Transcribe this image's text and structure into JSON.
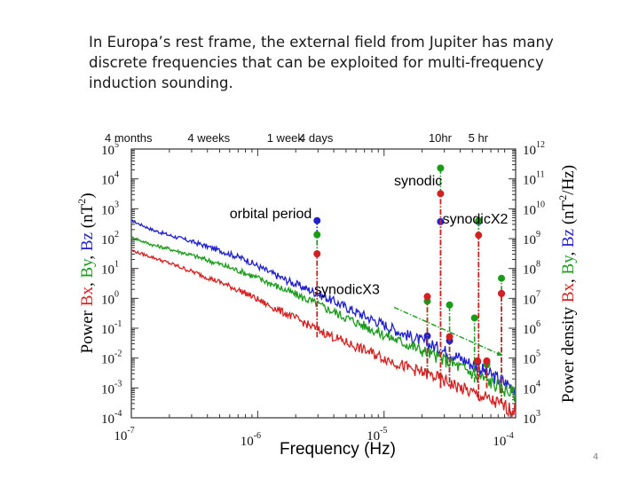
{
  "slide": {
    "text": "In Europa’s rest frame, the external field from Jupiter has many discrete frequencies that can be exploited for multi-frequency induction sounding.",
    "page_number": "4"
  },
  "chart_data": {
    "type": "line",
    "x_scale": "log",
    "y_scale": "log",
    "xlim": [
      1e-07,
      0.00011
    ],
    "ylim_left": [
      0.0001,
      100000.0
    ],
    "ylim_right": [
      1000.0,
      1000000000000.0
    ],
    "xlabel": "Frequency (Hz)",
    "ylabel_left": {
      "prefix": "Power",
      "parts": [
        [
          "Bx",
          "#d42020"
        ],
        [
          ", ",
          "#000000"
        ],
        [
          "By",
          "#1a9b1a"
        ],
        [
          ", ",
          "#000000"
        ],
        [
          "Bz",
          "#2020cc"
        ],
        [
          "  (nT",
          "#000000"
        ],
        [
          "2",
          "#000000"
        ],
        [
          ")",
          "#000000"
        ]
      ]
    },
    "ylabel_right": {
      "prefix": "Power density",
      "parts": [
        [
          "Bx",
          "#d42020"
        ],
        [
          ", ",
          "#000000"
        ],
        [
          "By",
          "#1a9b1a"
        ],
        [
          ", ",
          "#000000"
        ],
        [
          "Bz",
          "#2020cc"
        ],
        [
          "  (nT",
          "#000000"
        ],
        [
          "2",
          "#000000"
        ],
        [
          "/Hz)",
          "#000000"
        ]
      ]
    },
    "x_ticks": [
      {
        "value": 1e-07,
        "base": "10",
        "exp": "-7"
      },
      {
        "value": 1e-06,
        "base": "10",
        "exp": "-6"
      },
      {
        "value": 1e-05,
        "base": "10",
        "exp": "-5"
      },
      {
        "value": 0.0001,
        "base": "10",
        "exp": "-4"
      }
    ],
    "y_ticks_left": [
      {
        "value": 100000.0,
        "base": "10",
        "exp": "5"
      },
      {
        "value": 10000.0,
        "base": "10",
        "exp": "4"
      },
      {
        "value": 1000.0,
        "base": "10",
        "exp": "3"
      },
      {
        "value": 100.0,
        "base": "10",
        "exp": "2"
      },
      {
        "value": 10.0,
        "base": "10",
        "exp": "1"
      },
      {
        "value": 1.0,
        "base": "10",
        "exp": "0"
      },
      {
        "value": 0.1,
        "base": "10",
        "exp": "-1"
      },
      {
        "value": 0.01,
        "base": "10",
        "exp": "-2"
      },
      {
        "value": 0.001,
        "base": "10",
        "exp": "-3"
      },
      {
        "value": 0.0001,
        "base": "10",
        "exp": "-4"
      }
    ],
    "y_ticks_right": [
      {
        "value": 1000000000000.0,
        "base": "10",
        "exp": "12"
      },
      {
        "value": 100000000000.0,
        "base": "10",
        "exp": "11"
      },
      {
        "value": 10000000000.0,
        "base": "10",
        "exp": "10"
      },
      {
        "value": 1000000000.0,
        "base": "10",
        "exp": "9"
      },
      {
        "value": 100000000.0,
        "base": "10",
        "exp": "8"
      },
      {
        "value": 10000000.0,
        "base": "10",
        "exp": "7"
      },
      {
        "value": 1000000.0,
        "base": "10",
        "exp": "6"
      },
      {
        "value": 100000.0,
        "base": "10",
        "exp": "5"
      },
      {
        "value": 10000.0,
        "base": "10",
        "exp": "4"
      },
      {
        "value": 1000.0,
        "base": "10",
        "exp": "3"
      }
    ],
    "period_ticks": [
      {
        "label": "4 months",
        "freq": 1e-07
      },
      {
        "label": "4 weeks",
        "freq": 4.1e-07
      },
      {
        "label": "1 week",
        "freq": 1.65e-06
      },
      {
        "label": "4 days",
        "freq": 2.9e-06
      },
      {
        "label": "10hr",
        "freq": 2.78e-05
      },
      {
        "label": "5 hr",
        "freq": 5.56e-05
      }
    ],
    "series": [
      {
        "color": "#2020cc",
        "points": [
          [
            1e-07,
            400.0
          ],
          [
            1.5e-07,
            190.0
          ],
          [
            2e-07,
            130.0
          ],
          [
            3e-07,
            80.0
          ],
          [
            5e-07,
            40.0
          ],
          [
            8e-07,
            20.0
          ],
          [
            1.2e-06,
            8.0
          ],
          [
            1.7e-06,
            4.0
          ],
          [
            2.5e-06,
            2.0
          ],
          [
            4e-06,
            0.8
          ],
          [
            6e-06,
            0.35
          ],
          [
            1e-05,
            0.13
          ],
          [
            1.5e-05,
            0.06
          ],
          [
            2.5e-05,
            0.025
          ],
          [
            4e-05,
            0.01
          ],
          [
            6e-05,
            0.004
          ],
          [
            9e-05,
            0.0015
          ],
          [
            0.00011,
            0.001
          ]
        ]
      },
      {
        "color": "#1a9b1a",
        "points": [
          [
            1e-07,
            110.0
          ],
          [
            1.5e-07,
            60.0
          ],
          [
            2e-07,
            45.0
          ],
          [
            3e-07,
            28.0
          ],
          [
            5e-07,
            14.0
          ],
          [
            8e-07,
            7.0
          ],
          [
            1.2e-06,
            3.5
          ],
          [
            1.7e-06,
            1.8
          ],
          [
            2.5e-06,
            0.9
          ],
          [
            4e-06,
            0.35
          ],
          [
            6e-06,
            0.16
          ],
          [
            1e-05,
            0.06
          ],
          [
            1.5e-05,
            0.03
          ],
          [
            2.5e-05,
            0.012
          ],
          [
            4e-05,
            0.005
          ],
          [
            6e-05,
            0.0022
          ],
          [
            9e-05,
            0.0009
          ],
          [
            0.00011,
            0.0006
          ]
        ]
      },
      {
        "color": "#d42020",
        "points": [
          [
            1e-07,
            40.0
          ],
          [
            1.5e-07,
            23.0
          ],
          [
            2e-07,
            15.0
          ],
          [
            3e-07,
            8.0
          ],
          [
            5e-07,
            3.5
          ],
          [
            8e-07,
            1.5
          ],
          [
            1.2e-06,
            0.6
          ],
          [
            1.7e-06,
            0.3
          ],
          [
            2.5e-06,
            0.13
          ],
          [
            4e-06,
            0.05
          ],
          [
            6e-06,
            0.024
          ],
          [
            1e-05,
            0.01
          ],
          [
            1.5e-05,
            0.005
          ],
          [
            2.5e-05,
            0.0024
          ],
          [
            4e-05,
            0.001
          ],
          [
            6e-05,
            0.0005
          ],
          [
            9e-05,
            0.00024
          ],
          [
            0.00011,
            0.00016
          ]
        ]
      }
    ],
    "lines": [
      {
        "color": "#2020cc",
        "x": 2.95e-06,
        "y1": 0.05,
        "y2": 400.0
      },
      {
        "color": "#1a9b1a",
        "x": 2.95e-06,
        "y1": 0.05,
        "y2": 135.0
      },
      {
        "color": "#d42020",
        "x": 2.95e-06,
        "y1": 0.05,
        "y2": 31.0
      },
      {
        "color": "#2020cc",
        "x": 2.8e-05,
        "y1": 0.001,
        "y2": 370.0
      },
      {
        "color": "#1a9b1a",
        "x": 2.8e-05,
        "y1": 0.001,
        "y2": 23000.0
      },
      {
        "color": "#d42020",
        "x": 2.8e-05,
        "y1": 0.001,
        "y2": 3200.0
      },
      {
        "color": "#2020cc",
        "x": 5.6e-05,
        "y1": 0.0004,
        "y2": 370.0
      },
      {
        "color": "#1a9b1a",
        "x": 5.6e-05,
        "y1": 0.0004,
        "y2": 400.0
      },
      {
        "color": "#d42020",
        "x": 5.6e-05,
        "y1": 0.0004,
        "y2": 130.0
      },
      {
        "color": "#2020cc",
        "x": 8.5e-05,
        "y1": 0.0003,
        "y2": 1.45
      },
      {
        "color": "#1a9b1a",
        "x": 8.5e-05,
        "y1": 0.0003,
        "y2": 4.7
      },
      {
        "color": "#d42020",
        "x": 8.5e-05,
        "y1": 0.0003,
        "y2": 1.45
      },
      {
        "color": "#2020cc",
        "x": 2.2e-05,
        "y1": 0.003,
        "y2": 0.055
      },
      {
        "color": "#1a9b1a",
        "x": 2.2e-05,
        "y1": 0.003,
        "y2": 0.8
      },
      {
        "color": "#d42020",
        "x": 2.2e-05,
        "y1": 0.003,
        "y2": 1.15
      },
      {
        "color": "#2020cc",
        "x": 3.3e-05,
        "y1": 0.0015,
        "y2": 0.038
      },
      {
        "color": "#1a9b1a",
        "x": 3.3e-05,
        "y1": 0.0015,
        "y2": 0.6
      },
      {
        "color": "#d42020",
        "x": 3.3e-05,
        "y1": 0.0015,
        "y2": 0.052
      },
      {
        "color": "#2020cc",
        "x": 5.5e-05,
        "y1": 0.0015,
        "y2": 0.0075
      },
      {
        "color": "#1a9b1a",
        "x": 5.2e-05,
        "y1": 0.0015,
        "y2": 0.22
      },
      {
        "color": "#d42020",
        "x": 5.5e-05,
        "y1": 0.0015,
        "y2": 0.008
      },
      {
        "color": "#2020cc",
        "x": 6.5e-05,
        "y1": 0.001,
        "y2": 0.0075
      },
      {
        "color": "#1a9b1a",
        "x": 6.5e-05,
        "y1": 0.001,
        "y2": 0.006
      },
      {
        "color": "#d42020",
        "x": 6.5e-05,
        "y1": 0.001,
        "y2": 0.008
      }
    ],
    "annotations": [
      {
        "text": "orbital period",
        "x": 6e-07,
        "y": 480.0
      },
      {
        "text": "synodic",
        "x": 1.2e-05,
        "y": 6000.0
      },
      {
        "text": "synodicX2",
        "x": 2.9e-05,
        "y": 320.0
      },
      {
        "text": "synodicX3",
        "x": 2.8e-06,
        "y": 1.4
      }
    ],
    "annotation_arrows": [
      {
        "x1": 1.2e-05,
        "y1": 0.5,
        "x2": 8.7e-05,
        "y2": 0.012
      }
    ],
    "grid": false,
    "legend": "none"
  }
}
